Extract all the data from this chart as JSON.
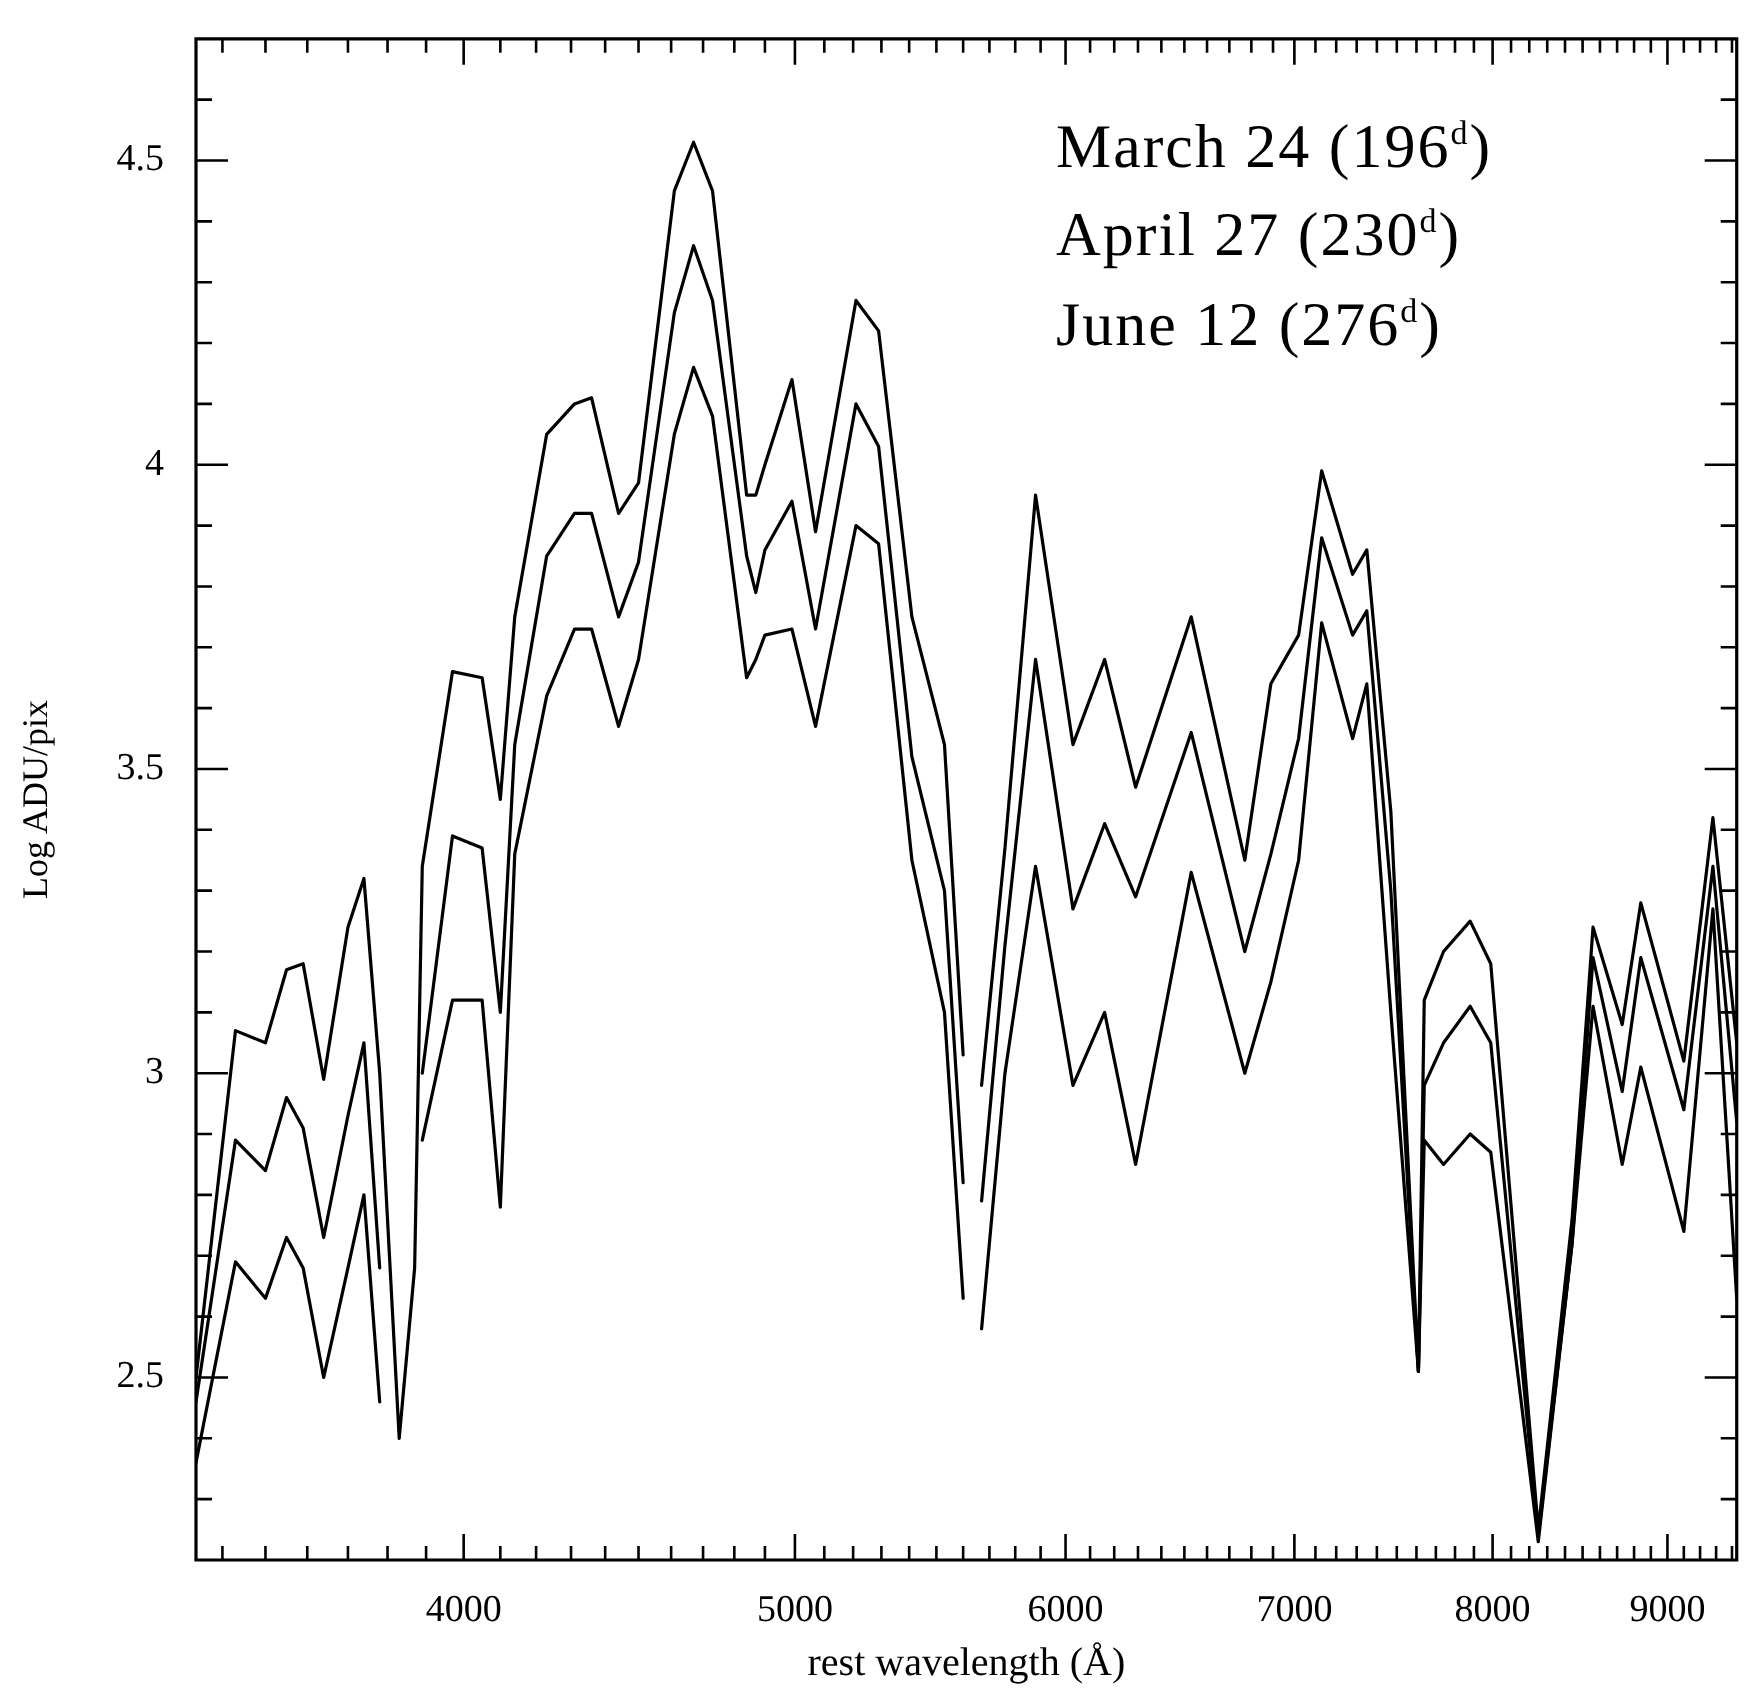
{
  "chart_data": {
    "type": "line",
    "xlabel": "rest wavelength (Å)",
    "ylabel": "Log ADU/pix",
    "log": "x",
    "marker": "none",
    "line_style": "solid",
    "grid": false,
    "legend": false,
    "annotations": [
      "March 24 (196$^{d}$)",
      "April 27 (230$^{d}$)",
      "June 12 (276$^{d}$)"
    ],
    "x": [
      3340,
      3430,
      3500,
      3550,
      3590,
      3640,
      3700,
      3740,
      3780,
      3830,
      3870,
      3890,
      3970,
      4050,
      4100,
      4140,
      4230,
      4310,
      4360,
      4440,
      4500,
      4610,
      4670,
      4730,
      4840,
      4870,
      4900,
      4990,
      5070,
      5210,
      5290,
      5410,
      5530,
      5600,
      5635,
      5670,
      5760,
      5880,
      6030,
      6160,
      6290,
      6530,
      6770,
      6890,
      7020,
      7130,
      7280,
      7350,
      7470,
      7610,
      7640,
      7740,
      7880,
      7990,
      8250,
      8440,
      8560,
      8730,
      8840,
      9100,
      9280,
      9430
    ],
    "series": [
      {
        "color": "#000000",
        "values": [
          2.5,
          3.07,
          3.05,
          3.17,
          3.18,
          2.99,
          3.24,
          3.32,
          3.0,
          2.4,
          2.68,
          3.34,
          3.66,
          3.65,
          3.45,
          3.75,
          4.05,
          4.1,
          4.11,
          3.92,
          3.97,
          4.45,
          4.53,
          4.45,
          3.95,
          3.95,
          4.0,
          4.14,
          3.89,
          4.27,
          4.22,
          3.75,
          3.54,
          3.03,
          null,
          2.98,
          3.37,
          3.95,
          3.54,
          3.68,
          3.47,
          3.75,
          3.35,
          3.64,
          3.72,
          3.99,
          3.82,
          3.86,
          3.43,
          2.51,
          3.12,
          3.2,
          3.25,
          3.18,
          2.25,
          2.76,
          3.24,
          3.08,
          3.28,
          3.02,
          3.42,
          3.05
        ]
      },
      {
        "color": "#000000",
        "values": [
          2.46,
          2.89,
          2.84,
          2.96,
          2.91,
          2.73,
          2.93,
          3.05,
          2.68,
          null,
          null,
          3.0,
          3.39,
          3.37,
          3.1,
          3.54,
          3.85,
          3.92,
          3.92,
          3.75,
          3.84,
          4.25,
          4.36,
          4.27,
          3.85,
          3.79,
          3.86,
          3.94,
          3.73,
          4.1,
          4.03,
          3.52,
          3.3,
          2.82,
          null,
          2.79,
          3.21,
          3.68,
          3.27,
          3.41,
          3.29,
          3.56,
          3.2,
          3.36,
          3.55,
          3.88,
          3.72,
          3.76,
          3.3,
          2.51,
          2.98,
          3.05,
          3.11,
          3.05,
          2.24,
          2.72,
          3.19,
          2.97,
          3.19,
          2.94,
          3.34,
          2.92
        ]
      },
      {
        "color": "#000000",
        "values": [
          2.36,
          2.69,
          2.63,
          2.73,
          2.68,
          2.5,
          2.68,
          2.8,
          2.46,
          null,
          null,
          2.89,
          3.12,
          3.12,
          2.78,
          3.36,
          3.62,
          3.73,
          3.73,
          3.57,
          3.68,
          4.05,
          4.16,
          4.08,
          3.65,
          3.68,
          3.72,
          3.73,
          3.57,
          3.9,
          3.87,
          3.35,
          3.1,
          2.63,
          null,
          2.58,
          3.0,
          3.34,
          2.98,
          3.1,
          2.85,
          3.33,
          3.0,
          3.15,
          3.35,
          3.74,
          3.55,
          3.64,
          3.1,
          2.51,
          2.89,
          2.85,
          2.9,
          2.87,
          2.23,
          2.72,
          3.11,
          2.85,
          3.01,
          2.74,
          3.27,
          2.63
        ]
      }
    ],
    "xlim": [
      3340,
      9430
    ],
    "xticks": [
      {
        "value": 3400,
        "label": null
      },
      {
        "value": 3500,
        "label": null
      },
      {
        "value": 3600,
        "label": null
      },
      {
        "value": 3700,
        "label": null
      },
      {
        "value": 3800,
        "label": null
      },
      {
        "value": 3900,
        "label": null
      },
      4000,
      {
        "value": 4100,
        "label": null
      },
      {
        "value": 4200,
        "label": null
      },
      {
        "value": 4300,
        "label": null
      },
      {
        "value": 4400,
        "label": null
      },
      {
        "value": 4500,
        "label": null
      },
      {
        "value": 4600,
        "label": null
      },
      {
        "value": 4700,
        "label": null
      },
      {
        "value": 4800,
        "label": null
      },
      {
        "value": 4900,
        "label": null
      },
      5000,
      {
        "value": 5100,
        "label": null
      },
      {
        "value": 5200,
        "label": null
      },
      {
        "value": 5300,
        "label": null
      },
      {
        "value": 5400,
        "label": null
      },
      {
        "value": 5500,
        "label": null
      },
      {
        "value": 5600,
        "label": null
      },
      {
        "value": 5700,
        "label": null
      },
      {
        "value": 5800,
        "label": null
      },
      {
        "value": 5900,
        "label": null
      },
      6000,
      {
        "value": 6100,
        "label": null
      },
      {
        "value": 6200,
        "label": null
      },
      {
        "value": 6300,
        "label": null
      },
      {
        "value": 6400,
        "label": null
      },
      {
        "value": 6500,
        "label": null
      },
      {
        "value": 6600,
        "label": null
      },
      {
        "value": 6700,
        "label": null
      },
      {
        "value": 6800,
        "label": null
      },
      {
        "value": 6900,
        "label": null
      },
      7000,
      {
        "value": 7100,
        "label": null
      },
      {
        "value": 7200,
        "label": null
      },
      {
        "value": 7300,
        "label": null
      },
      {
        "value": 7400,
        "label": null
      },
      {
        "value": 7500,
        "label": null
      },
      {
        "value": 7600,
        "label": null
      },
      {
        "value": 7700,
        "label": null
      },
      {
        "value": 7800,
        "label": null
      },
      {
        "value": 7900,
        "label": null
      },
      8000,
      {
        "value": 8100,
        "label": null
      },
      {
        "value": 8200,
        "label": null
      },
      {
        "value": 8300,
        "label": null
      },
      {
        "value": 8400,
        "label": null
      },
      {
        "value": 8500,
        "label": null
      },
      {
        "value": 8600,
        "label": null
      },
      {
        "value": 8700,
        "label": null
      },
      {
        "value": 8800,
        "label": null
      },
      {
        "value": 8900,
        "label": null
      },
      9000,
      {
        "value": 9100,
        "label": null
      },
      {
        "value": 9200,
        "label": null
      },
      {
        "value": 9300,
        "label": null
      },
      {
        "value": 9400,
        "label": null
      }
    ],
    "ylim": [
      2.2,
      4.7
    ],
    "yticks": [
      {
        "value": 2.3,
        "label": null
      },
      {
        "value": 2.4,
        "label": null
      },
      2.5,
      {
        "value": 2.6,
        "label": null
      },
      {
        "value": 2.7,
        "label": null
      },
      {
        "value": 2.8,
        "label": null
      },
      {
        "value": 2.9,
        "label": null
      },
      3,
      {
        "value": 3.1,
        "label": null
      },
      {
        "value": 3.2,
        "label": null
      },
      {
        "value": 3.3,
        "label": null
      },
      {
        "value": 3.4,
        "label": null
      },
      3.5,
      {
        "value": 3.6,
        "label": null
      },
      {
        "value": 3.7,
        "label": null
      },
      {
        "value": 3.8,
        "label": null
      },
      {
        "value": 3.9,
        "label": null
      },
      4,
      {
        "value": 4.1,
        "label": null
      },
      {
        "value": 4.2,
        "label": null
      },
      {
        "value": 4.3,
        "label": null
      },
      {
        "value": 4.4,
        "label": null
      },
      4.5,
      {
        "value": 4.6,
        "label": null
      }
    ]
  }
}
